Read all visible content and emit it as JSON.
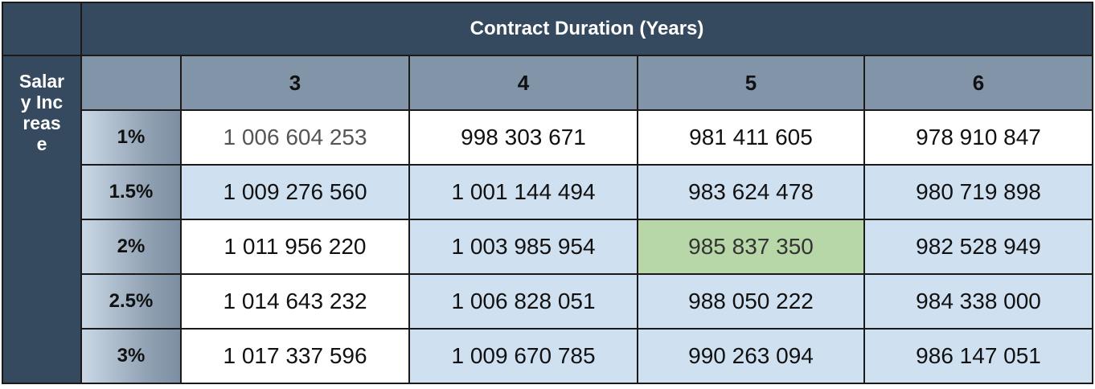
{
  "table": {
    "title": "Contract Duration (Years)",
    "row_title": "Salary Increase",
    "columns": [
      "3",
      "4",
      "5",
      "6"
    ],
    "rows": [
      {
        "label": "1%",
        "values": [
          "1 006 604 253",
          "998 303 671",
          "981 411 605",
          "978 910 847"
        ]
      },
      {
        "label": "1.5%",
        "values": [
          "1 009 276 560",
          "1 001 144 494",
          "983 624 478",
          "980 719 898"
        ]
      },
      {
        "label": "2%",
        "values": [
          "1 011 956 220",
          "1 003 985 954",
          "985 837 350",
          "982 528 949"
        ]
      },
      {
        "label": "2.5%",
        "values": [
          "1 014 643 232",
          "1 006 828 051",
          "988 050 222",
          "984 338 000"
        ]
      },
      {
        "label": "3%",
        "values": [
          "1 017 337 596",
          "1 009 670 785",
          "990 263 094",
          "986 147 051"
        ]
      }
    ],
    "highlight": {
      "row": 2,
      "col": 2
    },
    "colors": {
      "header_dark": "#354a5f",
      "header_mid": "#8194a8",
      "cell_blue": "#cfe0f1",
      "cell_highlight": "#b7d7a8"
    }
  }
}
